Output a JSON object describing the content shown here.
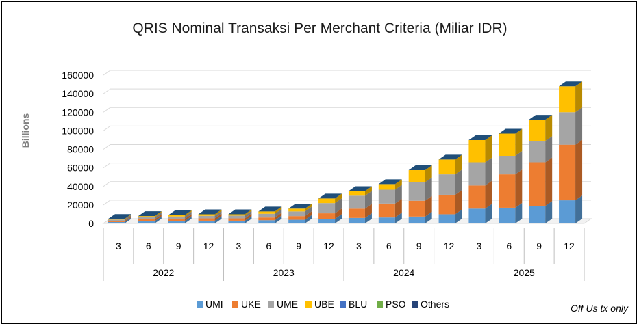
{
  "chart_data": {
    "type": "bar",
    "stacked": true,
    "title": "QRIS Nominal Transaksi Per Merchant Criteria (Miliar IDR)",
    "ylabel": "Billions",
    "xlabel": "",
    "ylim": [
      0,
      160000
    ],
    "yticks": [
      "0",
      "20000",
      "40000",
      "60000",
      "80000",
      "100000",
      "120000",
      "140000",
      "160000"
    ],
    "categories": [
      "3",
      "6",
      "9",
      "12",
      "3",
      "6",
      "9",
      "12",
      "3",
      "6",
      "9",
      "12",
      "3",
      "6",
      "9",
      "12"
    ],
    "groups": [
      {
        "label": "2022",
        "count": 4
      },
      {
        "label": "2023",
        "count": 4
      },
      {
        "label": "2024",
        "count": 4
      },
      {
        "label": "2025",
        "count": 4
      }
    ],
    "series": [
      {
        "name": "UMI",
        "color": "#5b9bd5",
        "values": [
          1500,
          2500,
          2800,
          3000,
          3000,
          3500,
          4000,
          5000,
          6000,
          6500,
          7500,
          10000,
          16000,
          17000,
          19000,
          25000
        ]
      },
      {
        "name": "UKE",
        "color": "#ed7d31",
        "values": [
          1200,
          2000,
          2200,
          2500,
          2500,
          3000,
          4000,
          6000,
          10000,
          15000,
          17000,
          21000,
          25000,
          36000,
          47000,
          60000
        ]
      },
      {
        "name": "UME",
        "color": "#a5a5a5",
        "values": [
          1500,
          2200,
          2600,
          2800,
          3000,
          4000,
          5000,
          11000,
          14000,
          15000,
          20000,
          22000,
          25000,
          20000,
          23000,
          35000
        ]
      },
      {
        "name": "UBE",
        "color": "#ffc000",
        "values": [
          800,
          1300,
          1400,
          1700,
          1500,
          2500,
          3000,
          5000,
          5000,
          6000,
          13000,
          16000,
          24000,
          24000,
          23000,
          28000
        ]
      },
      {
        "name": "BLU",
        "color": "#4472c4",
        "values": [
          0,
          0,
          0,
          0,
          0,
          0,
          0,
          0,
          0,
          0,
          0,
          0,
          0,
          0,
          0,
          0
        ]
      },
      {
        "name": "PSO",
        "color": "#70ad47",
        "values": [
          0,
          0,
          0,
          0,
          0,
          0,
          0,
          0,
          0,
          0,
          0,
          0,
          0,
          0,
          0,
          0
        ]
      },
      {
        "name": "Others",
        "color": "#264478",
        "values": [
          0,
          0,
          0,
          0,
          0,
          0,
          0,
          0,
          0,
          0,
          0,
          0,
          0,
          0,
          0,
          0
        ]
      }
    ],
    "legend_position": "bottom",
    "grid": true,
    "note": "Off Us tx only"
  }
}
